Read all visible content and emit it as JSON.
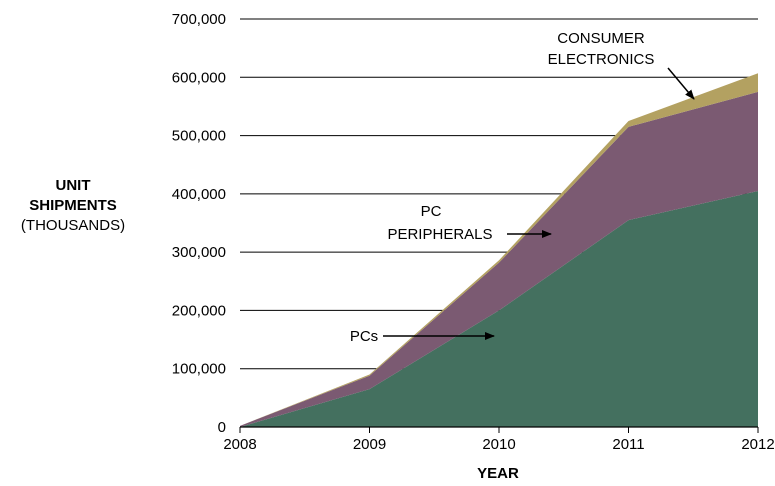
{
  "chart_data": {
    "type": "area",
    "stacked": true,
    "x": [
      2008,
      2009,
      2010,
      2011,
      2012
    ],
    "categories": [
      "2008",
      "2009",
      "2010",
      "2011",
      "2012"
    ],
    "series": [
      {
        "name": "PCs",
        "values": [
          0,
          65000,
          200000,
          355000,
          405000
        ],
        "color": "#44705f"
      },
      {
        "name": "PC PERIPHERALS",
        "values": [
          2000,
          23000,
          82000,
          160000,
          170000
        ],
        "color": "#7b5a72"
      },
      {
        "name": "CONSUMER ELECTRONICS",
        "values": [
          0,
          2000,
          4000,
          10000,
          32000
        ],
        "color": "#b3a161"
      }
    ],
    "xlabel": "YEAR",
    "ylabel_line1": "UNIT",
    "ylabel_line2": "SHIPMENTS",
    "ylabel_line3": "(THOUSANDS)",
    "ylim": [
      0,
      700000
    ],
    "yticks": [
      0,
      100000,
      200000,
      300000,
      400000,
      500000,
      600000,
      700000
    ],
    "ytick_labels": [
      "0",
      "100,000",
      "200,000",
      "300,000",
      "400,000",
      "500,000",
      "600,000",
      "700,000"
    ],
    "grid": true,
    "annotations": {
      "consumer_electronics_line1": "CONSUMER",
      "consumer_electronics_line2": "ELECTRONICS",
      "pc_peripherals_line1": "PC",
      "pc_peripherals_line2": "PERIPHERALS",
      "pcs": "PCs"
    }
  }
}
